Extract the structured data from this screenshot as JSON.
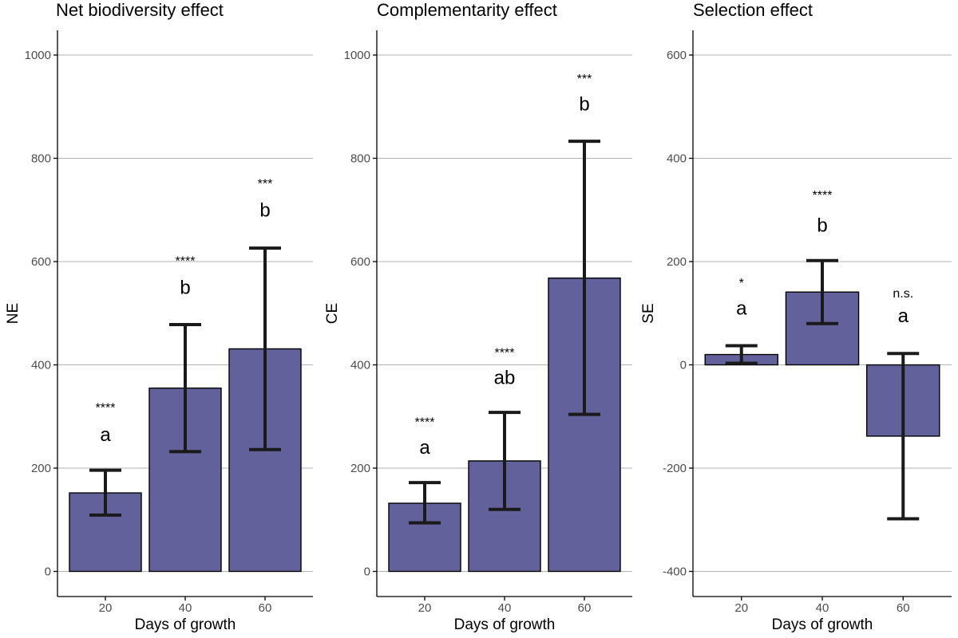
{
  "chart_data": [
    {
      "type": "bar",
      "title": "Net biodiversity effect",
      "xlabel": "Days of growth",
      "ylabel": "NE",
      "categories": [
        "20",
        "40",
        "60"
      ],
      "values": [
        152,
        355,
        431
      ],
      "error_low": [
        109,
        232,
        236
      ],
      "error_high": [
        196,
        478,
        626
      ],
      "ylim": [
        -45,
        1050
      ],
      "yticks": [
        0,
        200,
        400,
        600,
        800,
        1000
      ],
      "significance": [
        "****",
        "****",
        "***"
      ],
      "groups": [
        "a",
        "b",
        "b"
      ],
      "label_y": [
        {
          "sig": 318,
          "grp": 265
        },
        {
          "sig": 602,
          "grp": 550
        },
        {
          "sig": 752,
          "grp": 700
        }
      ],
      "grid": true,
      "bar_color": "#62619b"
    },
    {
      "type": "bar",
      "title": "Complementarity effect",
      "xlabel": "Days of growth",
      "ylabel": "CE",
      "categories": [
        "20",
        "40",
        "60"
      ],
      "values": [
        132,
        214,
        568
      ],
      "error_low": [
        94,
        120,
        304
      ],
      "error_high": [
        172,
        308,
        833
      ],
      "ylim": [
        -45,
        1050
      ],
      "yticks": [
        0,
        200,
        400,
        600,
        800,
        1000
      ],
      "significance": [
        "****",
        "****",
        "***"
      ],
      "groups": [
        "a",
        "ab",
        "b"
      ],
      "label_y": [
        {
          "sig": 290,
          "grp": 240
        },
        {
          "sig": 425,
          "grp": 375
        },
        {
          "sig": 955,
          "grp": 905
        }
      ],
      "grid": true,
      "bar_color": "#62619b"
    },
    {
      "type": "bar",
      "title": "Selection effect",
      "xlabel": "Days of growth",
      "ylabel": "SE",
      "categories": [
        "20",
        "40",
        "60"
      ],
      "values": [
        20,
        141,
        -138
      ],
      "error_low": [
        3,
        80,
        -298
      ],
      "error_high": [
        37,
        202,
        22
      ],
      "ylim": [
        -450,
        650
      ],
      "yticks": [
        -400,
        -200,
        0,
        200,
        400,
        600
      ],
      "significance": [
        "*",
        "****",
        "n.s."
      ],
      "groups": [
        "a",
        "b",
        "a"
      ],
      "label_y": [
        {
          "sig": 160,
          "grp": 110
        },
        {
          "sig": 330,
          "grp": 270
        },
        {
          "sig": 140,
          "grp": 95
        }
      ],
      "grid": true,
      "bar_color": "#62619b"
    }
  ]
}
